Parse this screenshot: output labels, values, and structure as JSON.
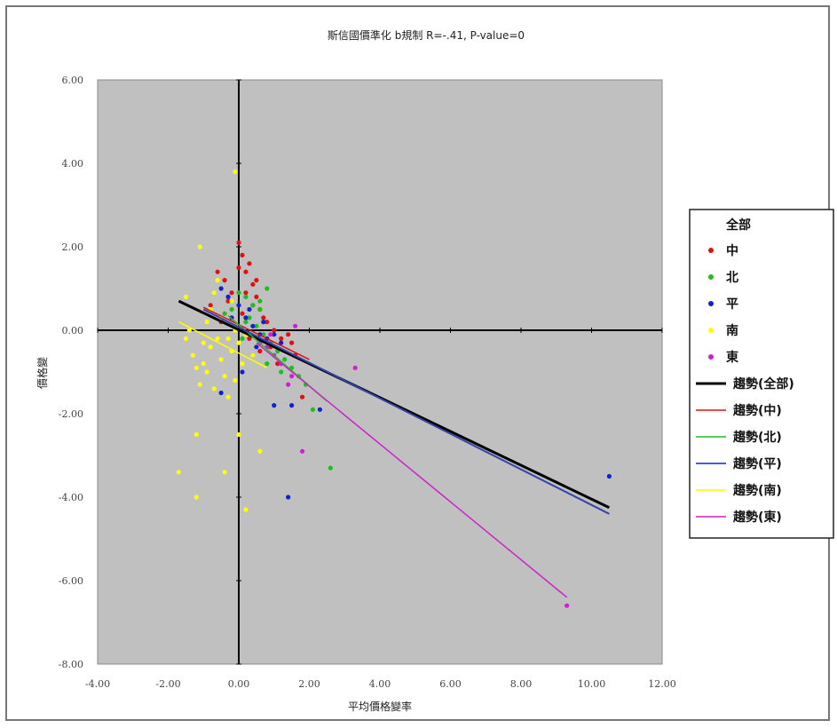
{
  "chart_data": {
    "type": "scatter",
    "title": "斯信國價準化 b規制 R=-.41, P-value=0",
    "xlabel": "平均價格變率",
    "ylabel": "價格變",
    "xlim": [
      -4,
      12
    ],
    "ylim": [
      -8,
      6
    ],
    "xticks": [
      "-4.00",
      "-2.00",
      "0.00",
      "2.00",
      "4.00",
      "6.00",
      "8.00",
      "10.00",
      "12.00"
    ],
    "yticks": [
      "6.00",
      "4.00",
      "2.00",
      "0.00",
      "-2.00",
      "-4.00",
      "-6.00",
      "-8.00"
    ],
    "grid": false,
    "legend_placement": "right",
    "legend_title": "全部",
    "colors": {
      "中": "#dd1111",
      "北": "#22bb22",
      "平": "#1122cc",
      "南": "#ffff00",
      "東": "#cc22cc",
      "all": "#000000"
    },
    "series": [
      {
        "name": "中",
        "color": "#dd1111",
        "points": [
          [
            -0.6,
            1.4
          ],
          [
            -0.4,
            1.2
          ],
          [
            -0.2,
            0.9
          ],
          [
            0.0,
            1.5
          ],
          [
            0.1,
            1.8
          ],
          [
            0.2,
            1.4
          ],
          [
            0.3,
            1.6
          ],
          [
            0.4,
            1.1
          ],
          [
            0.5,
            0.8
          ],
          [
            0.6,
            0.5
          ],
          [
            0.7,
            0.3
          ],
          [
            0.0,
            2.1
          ],
          [
            0.2,
            0.9
          ],
          [
            0.4,
            0.6
          ],
          [
            0.8,
            0.2
          ],
          [
            1.0,
            0.0
          ],
          [
            1.2,
            -0.2
          ],
          [
            1.4,
            -0.1
          ],
          [
            1.5,
            -0.3
          ],
          [
            0.9,
            -0.4
          ],
          [
            1.6,
            -0.6
          ],
          [
            1.8,
            -1.6
          ],
          [
            -0.3,
            0.7
          ],
          [
            0.1,
            0.4
          ],
          [
            -0.5,
            0.2
          ],
          [
            0.3,
            -0.2
          ],
          [
            0.6,
            -0.5
          ],
          [
            1.1,
            -0.8
          ],
          [
            -0.8,
            0.6
          ],
          [
            0.5,
            1.2
          ]
        ]
      },
      {
        "name": "北",
        "color": "#22bb22",
        "points": [
          [
            0.2,
            0.8
          ],
          [
            0.4,
            0.6
          ],
          [
            0.6,
            0.5
          ],
          [
            0.8,
            1.0
          ],
          [
            0.3,
            0.3
          ],
          [
            0.5,
            0.1
          ],
          [
            0.7,
            -0.1
          ],
          [
            0.9,
            -0.3
          ],
          [
            1.1,
            -0.5
          ],
          [
            1.3,
            -0.7
          ],
          [
            1.5,
            -0.9
          ],
          [
            1.7,
            -1.1
          ],
          [
            1.9,
            -1.3
          ],
          [
            2.1,
            -1.9
          ],
          [
            2.6,
            -3.3
          ],
          [
            0.1,
            -0.2
          ],
          [
            -0.2,
            0.5
          ],
          [
            0.0,
            0.9
          ],
          [
            0.4,
            -0.6
          ],
          [
            0.8,
            -0.8
          ],
          [
            1.2,
            -1.0
          ],
          [
            -0.4,
            0.4
          ],
          [
            0.2,
            0.2
          ],
          [
            0.6,
            0.7
          ]
        ]
      },
      {
        "name": "平",
        "color": "#1122cc",
        "points": [
          [
            -0.5,
            1.0
          ],
          [
            -0.3,
            0.8
          ],
          [
            0.0,
            0.6
          ],
          [
            0.2,
            0.3
          ],
          [
            0.4,
            0.1
          ],
          [
            0.6,
            -0.1
          ],
          [
            0.8,
            -0.2
          ],
          [
            1.0,
            -0.1
          ],
          [
            1.2,
            -0.3
          ],
          [
            0.1,
            -1.0
          ],
          [
            -0.5,
            -1.5
          ],
          [
            1.0,
            -1.8
          ],
          [
            1.5,
            -1.8
          ],
          [
            2.3,
            -1.9
          ],
          [
            1.4,
            -4.0
          ],
          [
            10.5,
            -3.5
          ],
          [
            0.3,
            0.5
          ],
          [
            0.5,
            -0.4
          ],
          [
            0.7,
            0.2
          ],
          [
            -0.2,
            0.3
          ]
        ]
      },
      {
        "name": "南",
        "color": "#ffff00",
        "points": [
          [
            -0.1,
            3.8
          ],
          [
            -1.1,
            2.0
          ],
          [
            -1.5,
            0.8
          ],
          [
            -1.4,
            0.0
          ],
          [
            -1.3,
            -0.6
          ],
          [
            -1.2,
            -0.9
          ],
          [
            -1.1,
            -1.3
          ],
          [
            -1.0,
            -0.3
          ],
          [
            -0.9,
            0.2
          ],
          [
            -0.8,
            0.5
          ],
          [
            -0.7,
            0.9
          ],
          [
            -0.6,
            -0.2
          ],
          [
            -0.5,
            -0.7
          ],
          [
            -0.4,
            -1.1
          ],
          [
            -0.3,
            -1.6
          ],
          [
            -0.2,
            -0.5
          ],
          [
            -0.1,
            0.0
          ],
          [
            0.0,
            -0.3
          ],
          [
            0.1,
            -0.8
          ],
          [
            0.0,
            -2.5
          ],
          [
            -1.2,
            -2.5
          ],
          [
            -1.2,
            -4.0
          ],
          [
            -1.7,
            -3.4
          ],
          [
            -0.4,
            -3.4
          ],
          [
            0.2,
            -4.3
          ],
          [
            0.6,
            -2.9
          ],
          [
            -0.6,
            1.2
          ],
          [
            -0.2,
            0.7
          ],
          [
            -0.5,
            0.3
          ],
          [
            -0.8,
            -0.4
          ],
          [
            -1.0,
            -0.8
          ],
          [
            -0.3,
            -0.2
          ],
          [
            0.2,
            -0.1
          ],
          [
            0.4,
            -0.6
          ],
          [
            -0.7,
            -1.4
          ],
          [
            -1.5,
            -0.2
          ],
          [
            -0.9,
            -1.0
          ],
          [
            -0.1,
            -1.2
          ]
        ]
      },
      {
        "name": "東",
        "color": "#cc22cc",
        "points": [
          [
            0.8,
            -0.4
          ],
          [
            1.0,
            -0.6
          ],
          [
            1.2,
            -0.8
          ],
          [
            1.4,
            -1.3
          ],
          [
            1.6,
            0.1
          ],
          [
            3.3,
            -0.9
          ],
          [
            1.8,
            -2.9
          ],
          [
            1.5,
            -1.1
          ],
          [
            9.3,
            -6.6
          ],
          [
            0.6,
            -0.3
          ],
          [
            0.9,
            -0.1
          ]
        ]
      }
    ],
    "trendlines": [
      {
        "name": "全部",
        "color": "#000000",
        "width": 3,
        "from": [
          -1.7,
          0.7
        ],
        "to": [
          10.5,
          -4.25
        ]
      },
      {
        "name": "中",
        "color": "#dd1111",
        "width": 1.5,
        "from": [
          -1.0,
          0.55
        ],
        "to": [
          2.0,
          -0.7
        ]
      },
      {
        "name": "北",
        "color": "#22bb22",
        "width": 1.5,
        "from": [
          -0.3,
          0.35
        ],
        "to": [
          2.5,
          -1.7
        ]
      },
      {
        "name": "平",
        "color": "#3344aa",
        "width": 2,
        "from": [
          -1.0,
          0.5
        ],
        "to": [
          10.5,
          -4.4
        ]
      },
      {
        "name": "南",
        "color": "#ffff00",
        "width": 1.5,
        "from": [
          -1.7,
          0.2
        ],
        "to": [
          0.8,
          -0.9
        ]
      },
      {
        "name": "東",
        "color": "#cc22cc",
        "width": 1.5,
        "from": [
          0.5,
          -0.3
        ],
        "to": [
          9.3,
          -6.4
        ]
      }
    ]
  },
  "legend": {
    "title": "全部",
    "items": [
      {
        "label": "中",
        "kind": "marker",
        "color": "#dd1111"
      },
      {
        "label": "北",
        "kind": "marker",
        "color": "#22bb22"
      },
      {
        "label": "平",
        "kind": "marker",
        "color": "#1122cc"
      },
      {
        "label": "南",
        "kind": "marker",
        "color": "#ffff00"
      },
      {
        "label": "東",
        "kind": "marker",
        "color": "#cc22cc"
      },
      {
        "label": "趨勢(全部)",
        "kind": "line",
        "color": "#000000"
      },
      {
        "label": "趨勢(中)",
        "kind": "line",
        "color": "#dd1111"
      },
      {
        "label": "趨勢(北)",
        "kind": "line",
        "color": "#22bb22"
      },
      {
        "label": "趨勢(平)",
        "kind": "line",
        "color": "#1122cc"
      },
      {
        "label": "趨勢(南)",
        "kind": "line",
        "color": "#ffff00"
      },
      {
        "label": "趨勢(東)",
        "kind": "line",
        "color": "#cc22cc"
      }
    ]
  }
}
